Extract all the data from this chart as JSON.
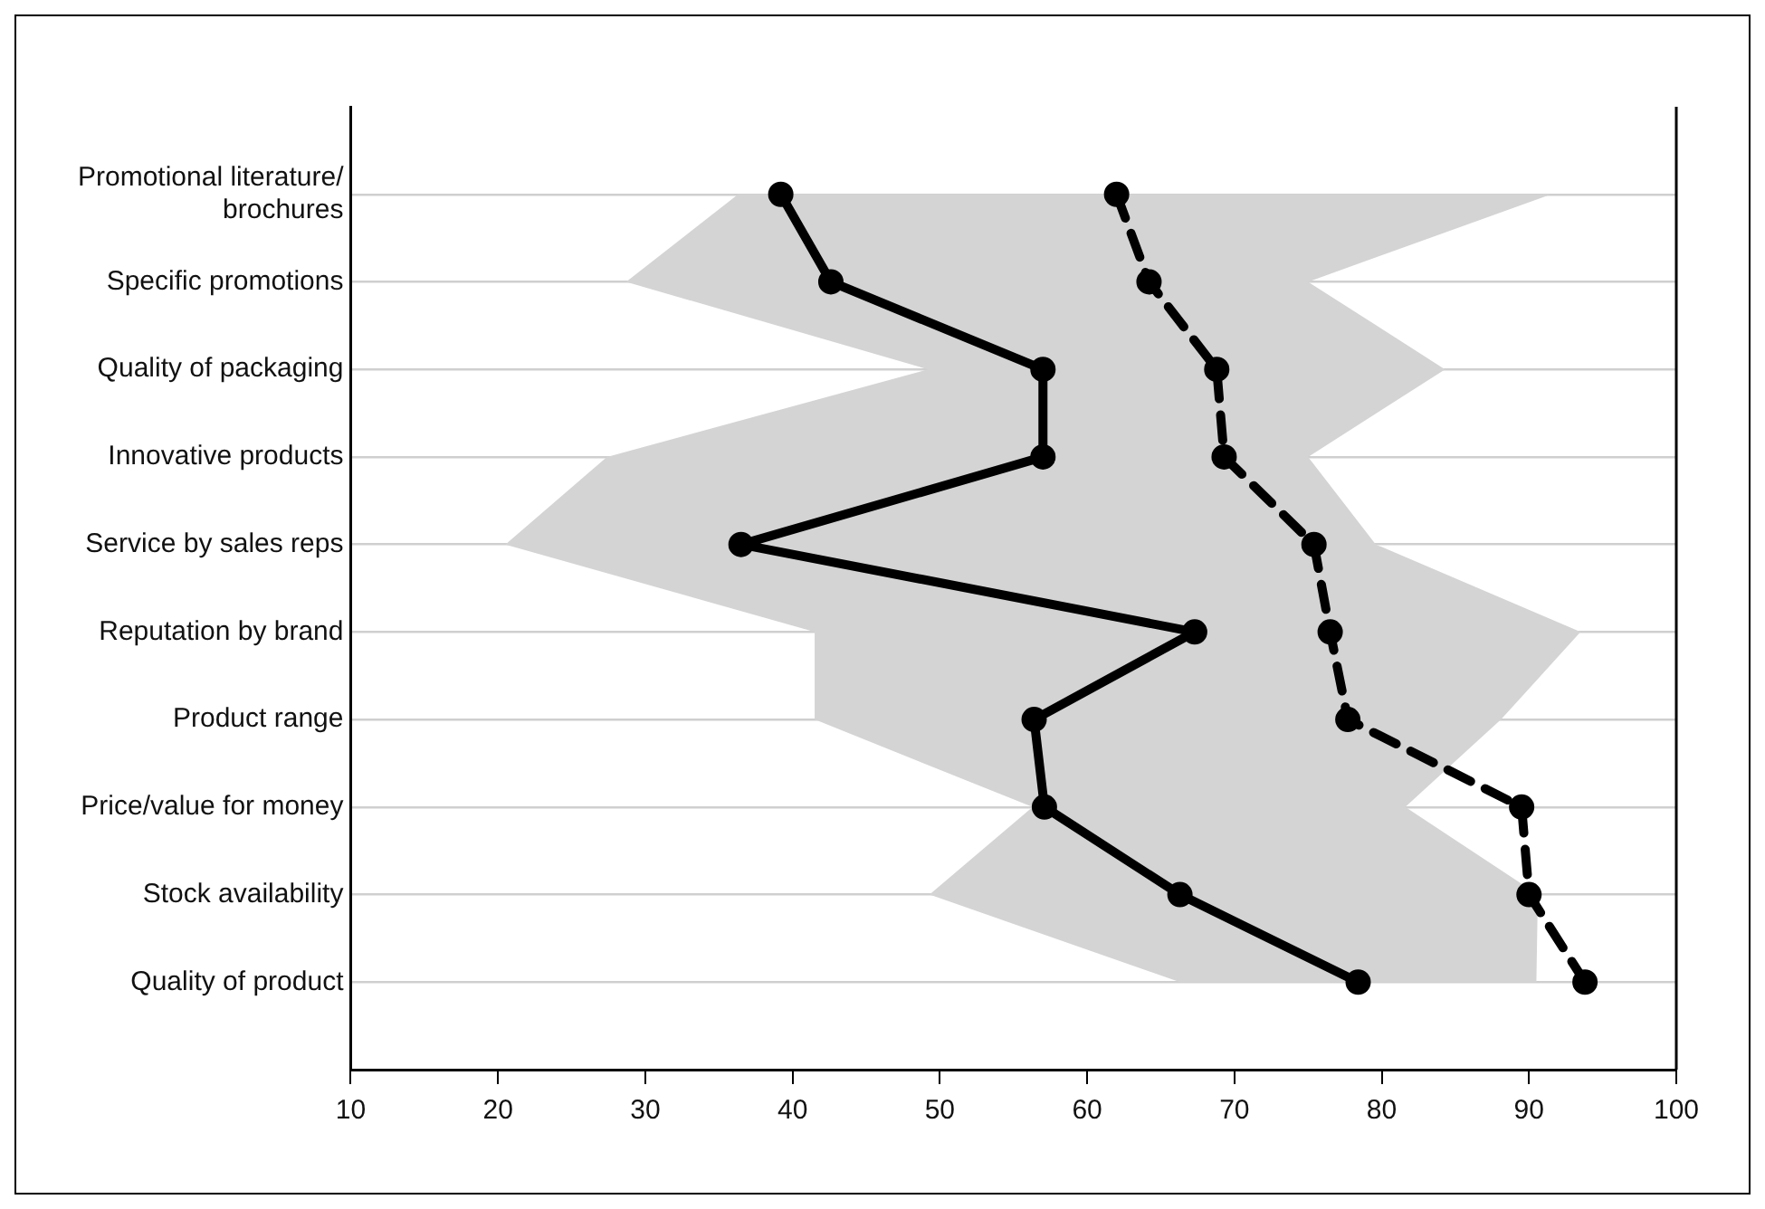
{
  "chart_data": {
    "type": "line",
    "orientation": "horizontal",
    "categories": [
      "Promotional literature/brochures",
      "Specific promotions",
      "Quality of packaging",
      "Innovative products",
      "Service by sales reps",
      "Reputation by brand",
      "Product range",
      "Price/value for money",
      "Stock availability",
      "Quality of product"
    ],
    "series": [
      {
        "color": "#000000",
        "line_style": "solid",
        "values": [
          39.2,
          42.6,
          57.0,
          57.0,
          36.5,
          67.3,
          56.4,
          57.1,
          66.3,
          78.4
        ],
        "lower": [
          36.3,
          28.7,
          49.2,
          27.4,
          20.5,
          41.5,
          41.5,
          56.3,
          49.3,
          66.3
        ],
        "upper": [
          91.5,
          75.0,
          84.3,
          75.0,
          79.6,
          93.5,
          88.1,
          81.6,
          90.6,
          90.5
        ]
      },
      {
        "color": "#000000",
        "line_style": "dashed",
        "values": [
          62.0,
          64.2,
          68.8,
          69.3,
          75.4,
          76.5,
          77.7,
          89.5,
          90.0,
          93.8
        ]
      }
    ],
    "xlim": [
      10,
      100
    ],
    "xticks": [
      10,
      20,
      30,
      40,
      50,
      60,
      70,
      80,
      90,
      100
    ],
    "grid": "y",
    "marker": "circle",
    "legend": false
  }
}
